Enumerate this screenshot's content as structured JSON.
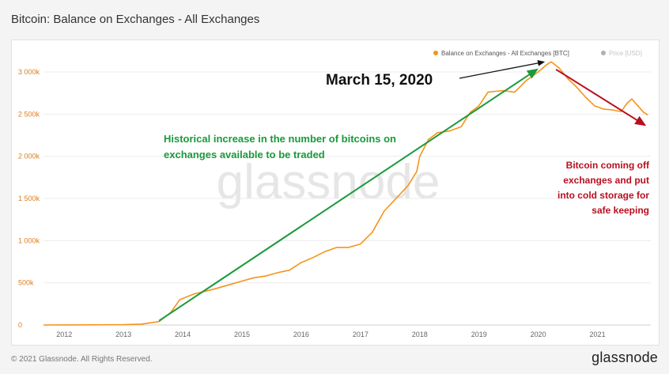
{
  "page": {
    "title": "Bitcoin: Balance on Exchanges - All Exchanges",
    "footer_copyright": "© 2021 Glassnode. All Rights Reserved.",
    "footer_logo": "glassnode",
    "watermark": "glassnode"
  },
  "colors": {
    "balance": "#f7931a",
    "price": "#b0b0b0",
    "green": "#1a9a3a",
    "red": "#b80f1f",
    "axis_text": "#e07c1a",
    "x_axis_text": "#666666",
    "grid": "#ececec",
    "watermark": "#e6e6e6"
  },
  "chart_data": {
    "type": "line",
    "x_unit": "year",
    "xlim": [
      2011.65,
      2021.9
    ],
    "ylim": [
      0,
      3150000
    ],
    "x_ticks": [
      {
        "v": 2012,
        "label": "2012"
      },
      {
        "v": 2013,
        "label": "2013"
      },
      {
        "v": 2014,
        "label": "2014"
      },
      {
        "v": 2015,
        "label": "2015"
      },
      {
        "v": 2016,
        "label": "2016"
      },
      {
        "v": 2017,
        "label": "2017"
      },
      {
        "v": 2018,
        "label": "2018"
      },
      {
        "v": 2019,
        "label": "2019"
      },
      {
        "v": 2020,
        "label": "2020"
      },
      {
        "v": 2021,
        "label": "2021"
      }
    ],
    "y_ticks": [
      {
        "v": 0,
        "label": "0"
      },
      {
        "v": 500000,
        "label": "500k"
      },
      {
        "v": 1000000,
        "label": "1 000k"
      },
      {
        "v": 1500000,
        "label": "1 500k"
      },
      {
        "v": 2000000,
        "label": "2 000k"
      },
      {
        "v": 2500000,
        "label": "2 500k"
      },
      {
        "v": 3000000,
        "label": "3 000k"
      }
    ],
    "legend": [
      {
        "name": "Balance on Exchanges - All Exchanges [BTC]",
        "color": "#f7931a",
        "active": true
      },
      {
        "name": "Price [USD]",
        "color": "#b0b0b0",
        "active": false
      }
    ],
    "legend_position": "top-right",
    "series": [
      {
        "name": "Balance on Exchanges - All Exchanges [BTC]",
        "points": [
          [
            2011.65,
            0
          ],
          [
            2012.0,
            1000
          ],
          [
            2012.5,
            2000
          ],
          [
            2013.0,
            4000
          ],
          [
            2013.3,
            10000
          ],
          [
            2013.6,
            40000
          ],
          [
            2013.8,
            150000
          ],
          [
            2013.95,
            300000
          ],
          [
            2014.2,
            370000
          ],
          [
            2014.5,
            420000
          ],
          [
            2014.8,
            480000
          ],
          [
            2015.0,
            520000
          ],
          [
            2015.2,
            560000
          ],
          [
            2015.4,
            580000
          ],
          [
            2015.6,
            620000
          ],
          [
            2015.8,
            650000
          ],
          [
            2016.0,
            740000
          ],
          [
            2016.2,
            800000
          ],
          [
            2016.4,
            870000
          ],
          [
            2016.6,
            920000
          ],
          [
            2016.8,
            920000
          ],
          [
            2017.0,
            960000
          ],
          [
            2017.2,
            1100000
          ],
          [
            2017.4,
            1350000
          ],
          [
            2017.6,
            1500000
          ],
          [
            2017.8,
            1650000
          ],
          [
            2017.95,
            1820000
          ],
          [
            2018.0,
            2000000
          ],
          [
            2018.15,
            2200000
          ],
          [
            2018.3,
            2280000
          ],
          [
            2018.5,
            2300000
          ],
          [
            2018.7,
            2350000
          ],
          [
            2018.85,
            2520000
          ],
          [
            2019.0,
            2600000
          ],
          [
            2019.15,
            2760000
          ],
          [
            2019.4,
            2780000
          ],
          [
            2019.6,
            2760000
          ],
          [
            2019.8,
            2900000
          ],
          [
            2020.0,
            3000000
          ],
          [
            2020.15,
            3090000
          ],
          [
            2020.22,
            3120000
          ],
          [
            2020.35,
            3050000
          ],
          [
            2020.5,
            2920000
          ],
          [
            2020.65,
            2820000
          ],
          [
            2020.8,
            2700000
          ],
          [
            2020.95,
            2600000
          ],
          [
            2021.1,
            2560000
          ],
          [
            2021.25,
            2550000
          ],
          [
            2021.4,
            2530000
          ],
          [
            2021.5,
            2630000
          ],
          [
            2021.58,
            2680000
          ],
          [
            2021.68,
            2600000
          ],
          [
            2021.78,
            2520000
          ],
          [
            2021.85,
            2490000
          ]
        ]
      }
    ],
    "annotations": {
      "date_label": "March 15, 2020",
      "green_text": [
        "Historical increase in the number of bitcoins on",
        "exchanges available to be traded"
      ],
      "red_text": [
        "Bitcoin coming off",
        "exchanges and put",
        "into cold storage for",
        "safe keeping"
      ],
      "green_arrow": {
        "from": [
          2013.6,
          50000
        ],
        "to": [
          2019.98,
          3030000
        ]
      },
      "red_arrow": {
        "from": [
          2020.3,
          3030000
        ],
        "to": [
          2021.8,
          2370000
        ]
      },
      "date_arrow_target": [
        2020.15,
        3100000
      ]
    }
  }
}
